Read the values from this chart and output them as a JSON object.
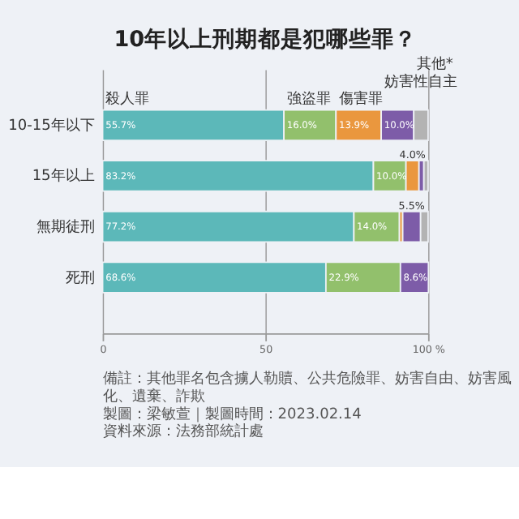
{
  "chart_data": {
    "type": "bar",
    "orientation": "horizontal",
    "stacked": true,
    "title": "10年以上刑期都是犯哪些罪？",
    "categories": [
      "10-15年以下",
      "15年以上",
      "無期徒刑",
      "死刑"
    ],
    "series": [
      {
        "name": "殺人罪",
        "color": "#5cb8b9",
        "values": [
          55.7,
          83.2,
          77.2,
          68.6
        ],
        "value_labels": [
          "55.7%",
          "83.2%",
          "77.2%",
          "68.6%"
        ]
      },
      {
        "name": "強盜罪",
        "color": "#92c06c",
        "values": [
          16.0,
          10.0,
          14.0,
          22.9
        ],
        "value_labels": [
          "16.0%",
          "10.0%",
          "14.0%",
          "22.9%"
        ]
      },
      {
        "name": "傷害罪",
        "color": "#ea973e",
        "values": [
          13.9,
          4.0,
          1.0,
          null
        ],
        "value_labels": [
          "13.9%",
          "4.0%",
          null,
          null
        ]
      },
      {
        "name": "妨害性自主",
        "color": "#7d5ca8",
        "values": [
          10.0,
          1.5,
          5.5,
          8.6
        ],
        "value_labels": [
          "10.0%",
          null,
          "5.5%",
          "8.6%"
        ]
      },
      {
        "name": "其他*",
        "color": "#b3b3b3",
        "values": [
          4.4,
          1.3,
          2.3,
          null
        ],
        "value_labels": [
          null,
          null,
          null,
          null
        ]
      }
    ],
    "xlim": [
      0,
      100
    ],
    "xticks": [
      0,
      50,
      {
        "value": 100,
        "label": "100 %"
      }
    ],
    "grid": "x",
    "annotations": [
      "備註：其他罪名包含擄人勒贖、公共危險罪、妨害自由、妨害風化、遺棄、詐欺",
      "製圖：梁敏萱｜製圖時間：2023.02.14",
      "資料來源：法務部統計處"
    ]
  }
}
